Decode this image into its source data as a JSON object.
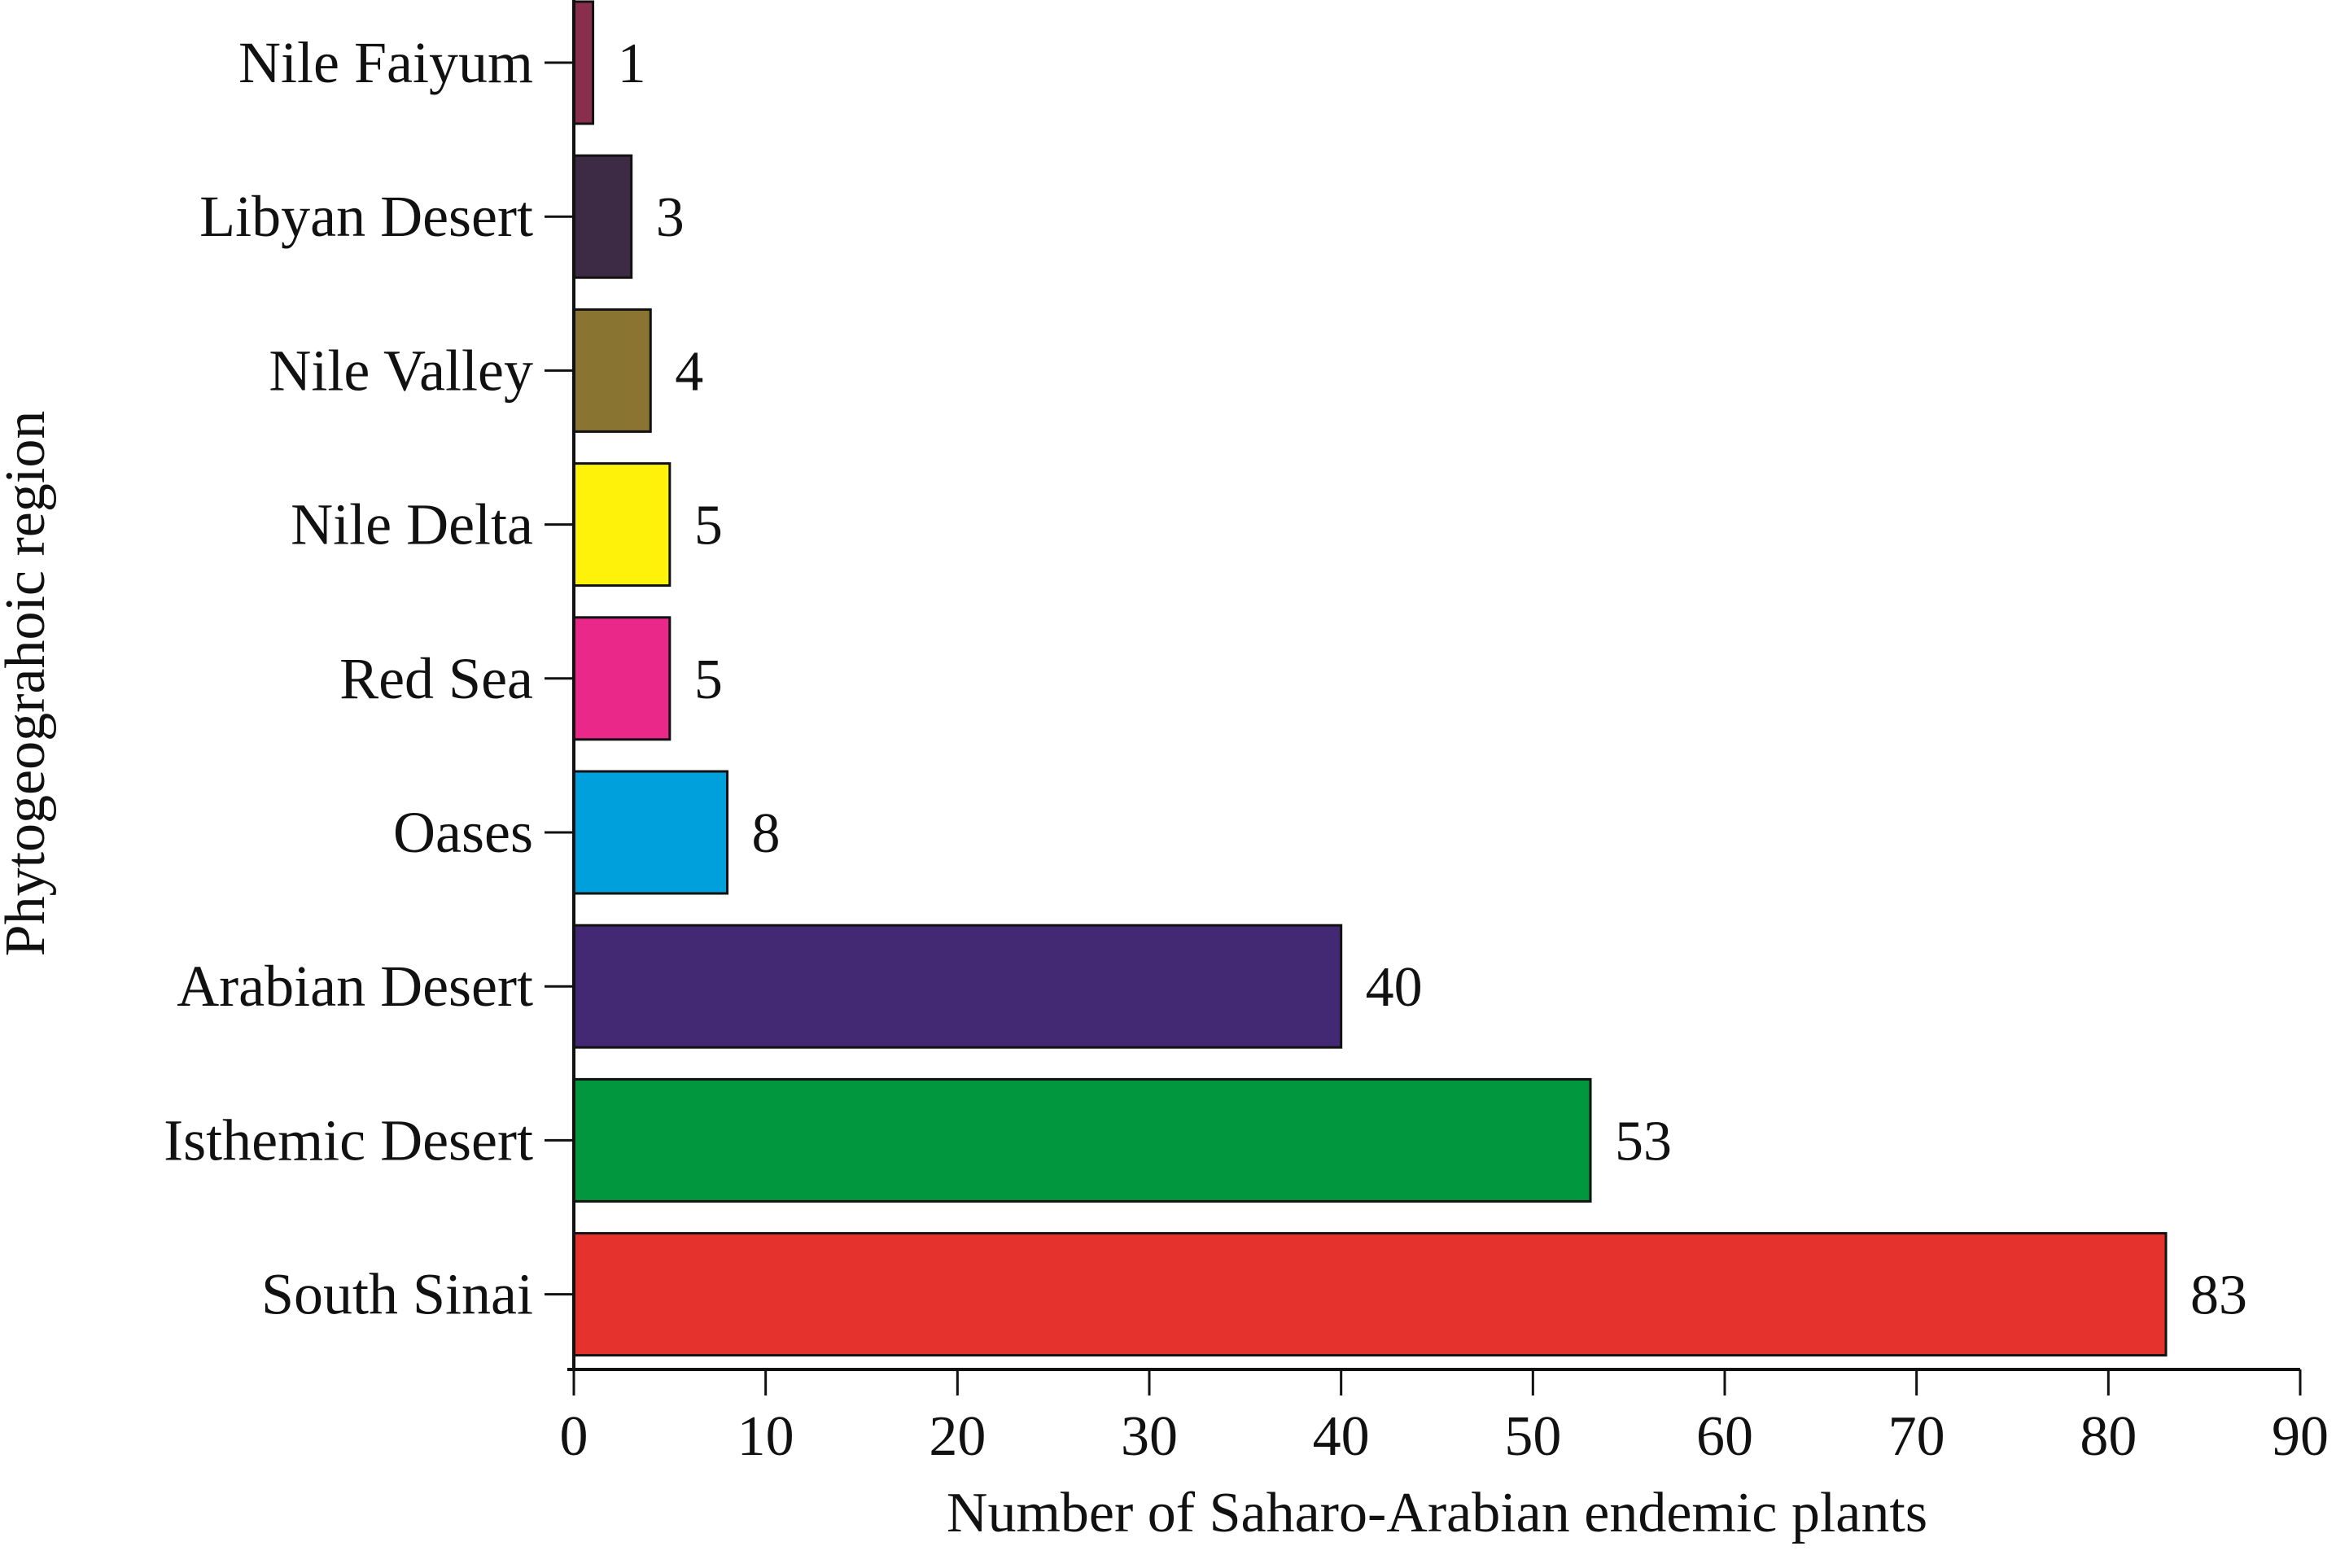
{
  "chart_data": {
    "type": "bar",
    "orientation": "horizontal",
    "title": "",
    "xlabel": "Number of Saharo-Arabian endemic plants",
    "ylabel": "Phytogeograhoic region",
    "xlim": [
      0,
      90
    ],
    "xticks": [
      0,
      10,
      20,
      30,
      40,
      50,
      60,
      70,
      80,
      90
    ],
    "grid": false,
    "legend": "none",
    "categories": [
      "Nile Faiyum",
      "Libyan Desert",
      "Nile Valley",
      "Nile Delta",
      "Red Sea",
      "Oases",
      "Arabian Desert",
      "Isthemic Desert",
      "South Sinai"
    ],
    "values": [
      1,
      3,
      4,
      5,
      5,
      8,
      40,
      53,
      83
    ],
    "value_labels": [
      "1",
      "3",
      "4",
      "5",
      "5",
      "8",
      "40",
      "53",
      "83"
    ],
    "colors": [
      "#8a2e4e",
      "#3d2b45",
      "#8a7432",
      "#fff20a",
      "#e9288a",
      "#00a0dc",
      "#432874",
      "#00973f",
      "#e5322d"
    ]
  }
}
